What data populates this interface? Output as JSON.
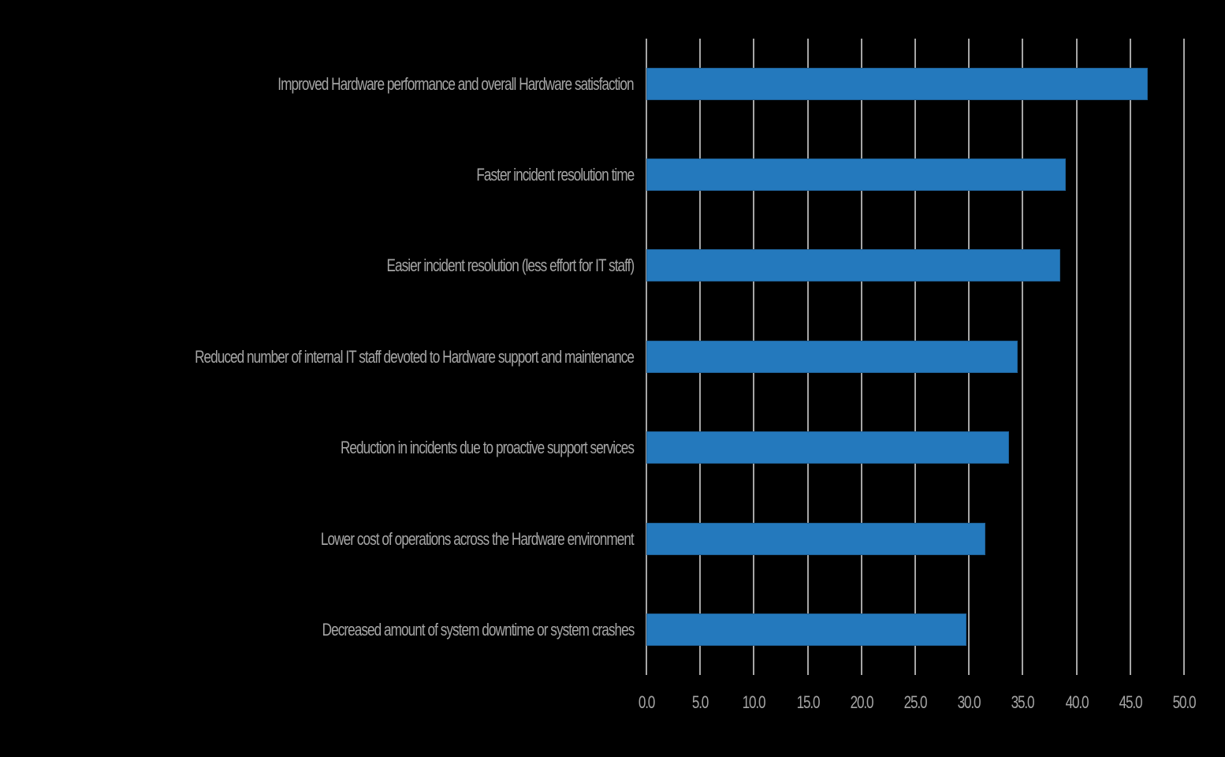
{
  "chart_data": {
    "type": "bar",
    "orientation": "horizontal",
    "title": "",
    "xlabel": "",
    "ylabel": "",
    "categories": [
      "Improved Hardware performance and overall Hardware satisfaction",
      "Faster incident resolution time",
      "Easier incident resolution (less effort for IT staff)",
      "Reduced number of internal IT staff devoted to Hardware support and maintenance",
      "Reduction in incidents due to proactive support services",
      "Lower cost of operations across the Hardware environment",
      "Decreased amount of system downtime or system crashes"
    ],
    "values": [
      46.6,
      39.0,
      38.5,
      34.5,
      33.7,
      31.5,
      29.8
    ],
    "xlim": [
      0,
      50
    ],
    "x_ticks": [
      "0.0",
      "5.0",
      "10.0",
      "15.0",
      "20.0",
      "25.0",
      "30.0",
      "35.0",
      "40.0",
      "45.0",
      "50.0"
    ],
    "grid": "vertical",
    "legend": null,
    "colors": {
      "bar": "#2479bd",
      "grid": "#a6a6a6",
      "text": "#a6a6a6",
      "background": "#000000"
    }
  }
}
